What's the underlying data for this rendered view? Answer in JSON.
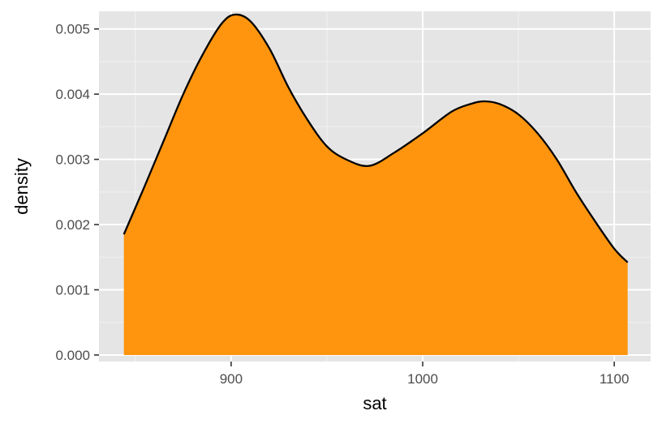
{
  "chart_data": {
    "type": "area",
    "title": "",
    "xlabel": "sat",
    "ylabel": "density",
    "xlim": [
      831,
      1119
    ],
    "ylim": [
      -0.0001,
      0.00527
    ],
    "x_ticks": [
      900,
      1000,
      1100
    ],
    "x_tick_labels": [
      "900",
      "1000",
      "1100"
    ],
    "y_ticks": [
      0,
      0.001,
      0.002,
      0.003,
      0.004,
      0.005
    ],
    "y_tick_labels": [
      "0.000",
      "0.001",
      "0.002",
      "0.003",
      "0.004",
      "0.005"
    ],
    "grid": true,
    "fill_color": "#ff950e",
    "line_color": "#000000",
    "panel_background": "#e5e5e5",
    "x": [
      844,
      855,
      865,
      875,
      885,
      895,
      902,
      910,
      920,
      930,
      940,
      950,
      960,
      972,
      985,
      1000,
      1015,
      1025,
      1032,
      1040,
      1050,
      1060,
      1070,
      1080,
      1090,
      1100,
      1107
    ],
    "y": [
      0.00185,
      0.0026,
      0.0033,
      0.004,
      0.0046,
      0.00508,
      0.00522,
      0.00512,
      0.0047,
      0.0041,
      0.0036,
      0.0032,
      0.003,
      0.0029,
      0.0031,
      0.0034,
      0.00373,
      0.00385,
      0.00389,
      0.00385,
      0.00369,
      0.0034,
      0.003,
      0.0025,
      0.00205,
      0.00163,
      0.00142
    ]
  }
}
